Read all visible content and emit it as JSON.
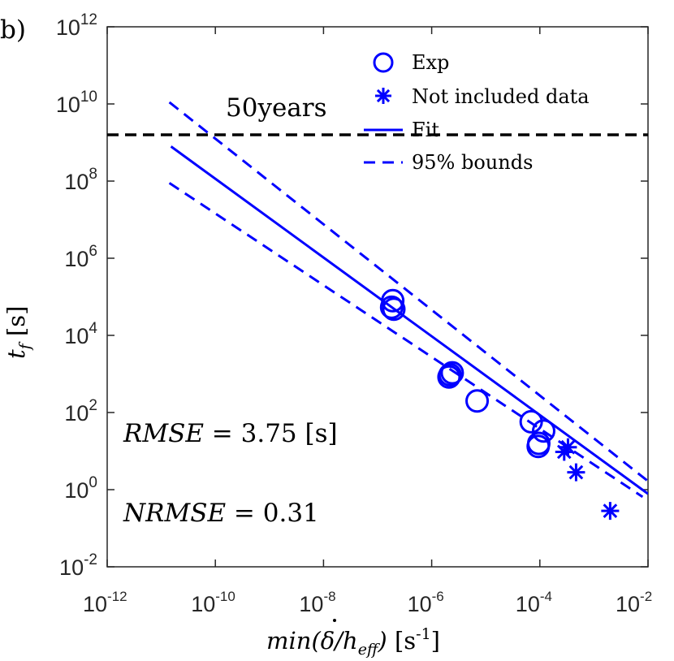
{
  "chart_data": {
    "type": "scatter",
    "panel_label": "b)",
    "x_scale": "log",
    "y_scale": "log",
    "xlim_exp": [
      -12,
      -2
    ],
    "ylim_exp": [
      -2,
      12
    ],
    "x_ticks": [
      {
        "base": "10",
        "exp": "-12",
        "value_exp": -12
      },
      {
        "base": "10",
        "exp": "-10",
        "value_exp": -10
      },
      {
        "base": "10",
        "exp": "-8",
        "value_exp": -8
      },
      {
        "base": "10",
        "exp": "-6",
        "value_exp": -6
      },
      {
        "base": "10",
        "exp": "-4",
        "value_exp": -4
      },
      {
        "base": "10",
        "exp": "-2",
        "value_exp": -2
      }
    ],
    "y_ticks": [
      {
        "base": "10",
        "exp": "-2",
        "value_exp": -2
      },
      {
        "base": "10",
        "exp": "0",
        "value_exp": 0
      },
      {
        "base": "10",
        "exp": "2",
        "value_exp": 2
      },
      {
        "base": "10",
        "exp": "4",
        "value_exp": 4
      },
      {
        "base": "10",
        "exp": "6",
        "value_exp": 6
      },
      {
        "base": "10",
        "exp": "8",
        "value_exp": 8
      },
      {
        "base": "10",
        "exp": "10",
        "value_exp": 10
      },
      {
        "base": "10",
        "exp": "12",
        "value_exp": 12
      }
    ],
    "xlabel": {
      "func": "min(",
      "delta": "δ",
      "slash": "/h",
      "sub": "eff",
      "close": ")",
      "unit": " [s",
      "unit_sup": "-1",
      "unit_close": "]"
    },
    "ylabel": {
      "main": "t",
      "sub": "f",
      "unit": " [s]"
    },
    "series": [
      {
        "name": "Exp",
        "marker": "circle",
        "color": "#0000ff",
        "points_log10": [
          [
            -6.7,
            4.68
          ],
          [
            -6.72,
            4.9
          ],
          [
            -6.74,
            4.73
          ],
          [
            -5.68,
            2.92
          ],
          [
            -5.62,
            3.03
          ],
          [
            -5.66,
            2.98
          ],
          [
            -5.16,
            2.3
          ],
          [
            -4.16,
            1.76
          ],
          [
            -3.93,
            1.52
          ],
          [
            -4.03,
            1.12
          ],
          [
            -4.02,
            1.2
          ]
        ]
      },
      {
        "name": "Not included data",
        "marker": "asterisk",
        "color": "#0000ff",
        "points_log10": [
          [
            -3.55,
            0.98
          ],
          [
            -3.48,
            1.1
          ],
          [
            -3.33,
            0.45
          ],
          [
            -2.7,
            -0.55
          ]
        ]
      }
    ],
    "fit": {
      "name": "Fit",
      "slope": -1.021,
      "intercept": -2.15,
      "x_range_exp": [
        -10.82,
        -2
      ],
      "color": "#0000ff"
    },
    "bounds": {
      "name": "95% bounds",
      "upper": {
        "slope": -1.11,
        "intercept": -2.0,
        "x_range_exp": [
          -10.85,
          -2
        ]
      },
      "lower": {
        "slope": -0.93,
        "intercept": -2.14,
        "x_range_exp": [
          -10.85,
          -2.1
        ]
      },
      "color": "#0000ff"
    },
    "reference_line": {
      "label": "50years",
      "y_log10": 9.2,
      "color": "#000000"
    },
    "annotations": {
      "rmse": {
        "lhs": "RMSE",
        "eq": " = 3.75 ",
        "unit": "[s]"
      },
      "nrmse": {
        "lhs": "NRMSE",
        "eq": " = 0.31"
      }
    },
    "legend": {
      "position": "top-right",
      "entries": [
        "Exp",
        "Not included data",
        "Fit",
        "95% bounds"
      ]
    },
    "grid": false
  }
}
